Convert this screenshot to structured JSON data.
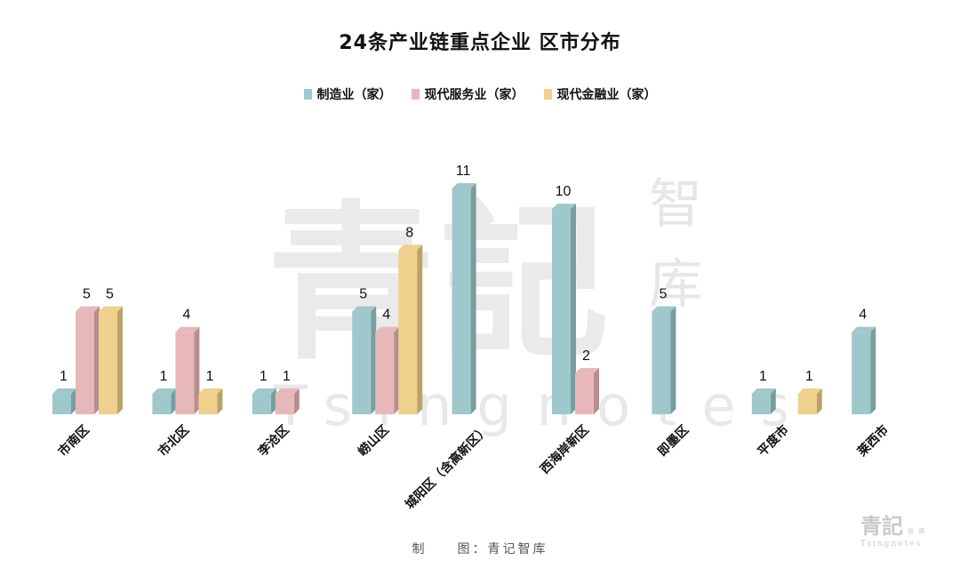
{
  "watermark": {
    "big": "青記",
    "side_top": "智",
    "side_bottom": "库",
    "latin": "Tsingnotes"
  },
  "corner_logo": {
    "big": "青記",
    "small_top": "智",
    "small_bottom": "庫",
    "latin": "Tsingnotes"
  },
  "footer": "制　　图：青记智库",
  "colors": {
    "manufacturing": "#9ec8cc",
    "services": "#e8b7b9",
    "finance": "#efd08c"
  },
  "chart_data": {
    "type": "bar",
    "title": "24条产业链重点企业 区市分布",
    "legend_position": "top",
    "grid": false,
    "ylim": [
      0,
      11
    ],
    "categories": [
      "市南区",
      "市北区",
      "李沧区",
      "崂山区",
      "城阳区（含高新区）",
      "西海岸新区",
      "即墨区",
      "平度市",
      "莱西市"
    ],
    "series": [
      {
        "name": "制造业（家）",
        "values": [
          1,
          1,
          1,
          5,
          11,
          10,
          5,
          1,
          4
        ]
      },
      {
        "name": "现代服务业（家）",
        "values": [
          5,
          4,
          1,
          4,
          null,
          2,
          null,
          null,
          null
        ]
      },
      {
        "name": "现代金融业（家）",
        "values": [
          5,
          1,
          null,
          8,
          null,
          null,
          null,
          1,
          null
        ]
      }
    ]
  }
}
